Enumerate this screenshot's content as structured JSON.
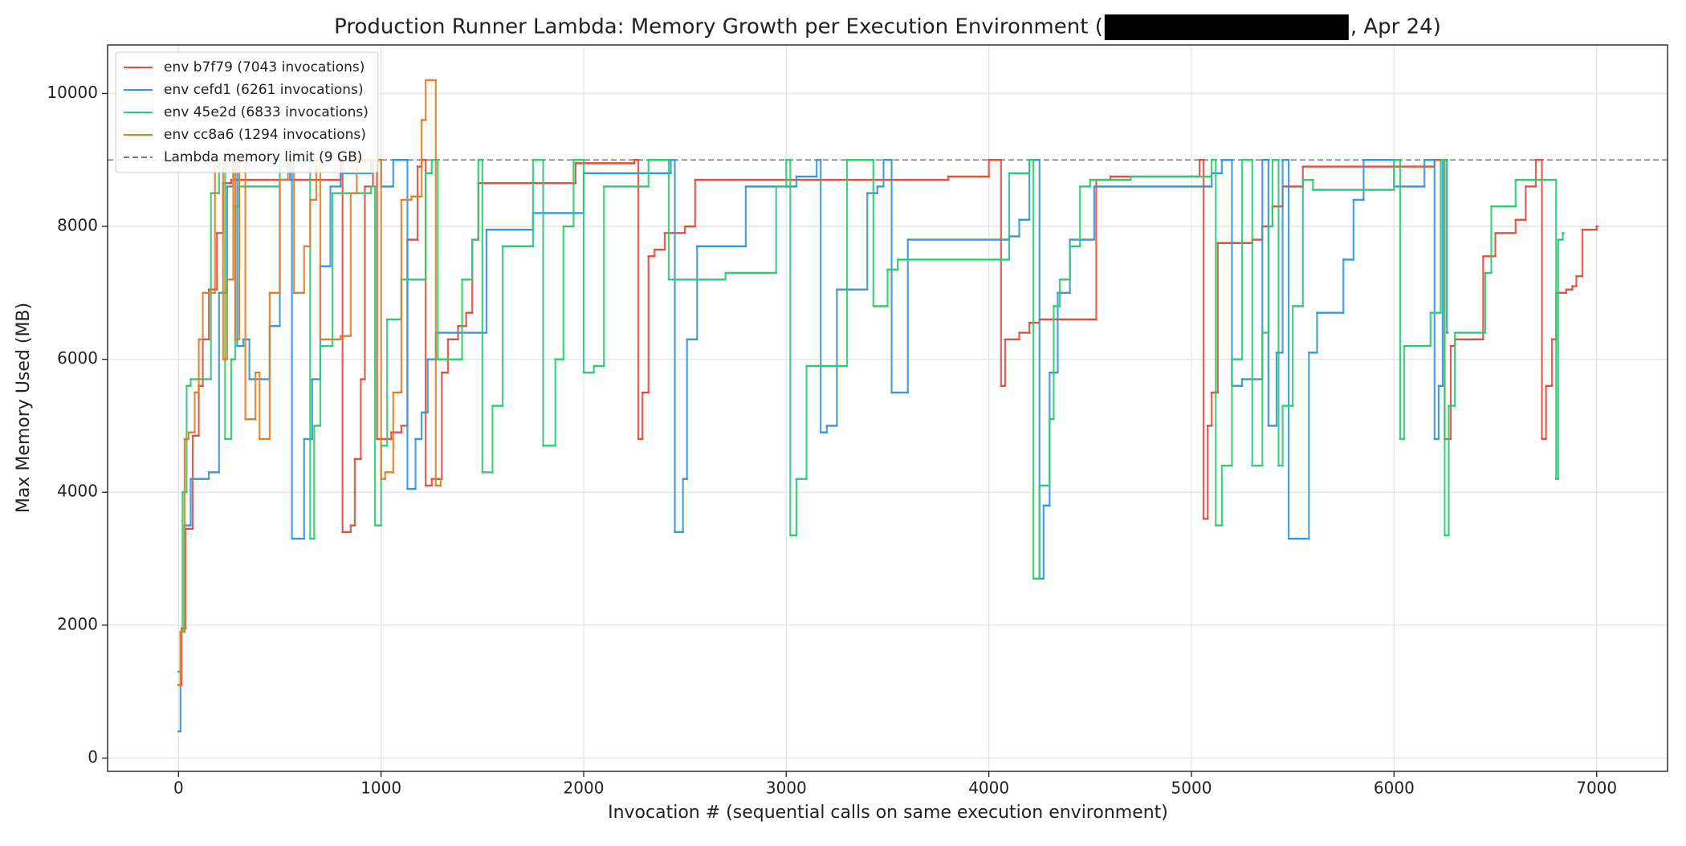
{
  "chart_data": {
    "type": "step",
    "title_before_redaction": "Production Runner Lambda: Memory Growth per Execution Environment (",
    "title_after_redaction": ", Apr 24)",
    "x_label": "Invocation # (sequential calls on same execution environment)",
    "y_label": "Max Memory Used (MB)",
    "xlim": [
      -350,
      7350
    ],
    "ylim": [
      -200,
      10730
    ],
    "xticks": [
      0,
      1000,
      2000,
      3000,
      4000,
      5000,
      6000,
      7000
    ],
    "yticks": [
      0,
      2000,
      4000,
      6000,
      8000,
      10000
    ],
    "grid": true,
    "legend": "upper left",
    "series": [
      {
        "name": "env b7f79 (7043 invocations)",
        "color": "#e74c3c",
        "x": [
          0,
          15,
          35,
          70,
          100,
          120,
          150,
          190,
          220,
          260,
          790,
          800,
          810,
          850,
          870,
          900,
          920,
          960,
          980,
          1050,
          1100,
          1130,
          1180,
          1200,
          1220,
          1250,
          1300,
          1330,
          1380,
          1420,
          1450,
          1480,
          1950,
          1960,
          2250,
          2270,
          2290,
          2320,
          2350,
          2400,
          2500,
          2550,
          3000,
          3800,
          4000,
          4060,
          4080,
          4150,
          4200,
          4250,
          4500,
          4530,
          4600,
          5000,
          5040,
          5060,
          5080,
          5100,
          5130,
          5300,
          5350,
          5400,
          5450,
          5550,
          6100,
          6200,
          6250,
          6280,
          6300,
          6400,
          6440,
          6500,
          6600,
          6650,
          6700,
          6730,
          6750,
          6780,
          6800,
          6850,
          6880,
          6900,
          6930,
          7000
        ],
        "values": [
          1100,
          1950,
          3450,
          4850,
          5600,
          6300,
          7050,
          7900,
          8650,
          8700,
          8700,
          9000,
          3400,
          3500,
          4500,
          5700,
          8600,
          9000,
          4800,
          4900,
          5000,
          7800,
          8900,
          9000,
          4100,
          4200,
          5800,
          6300,
          6500,
          6700,
          7800,
          8650,
          8650,
          8950,
          9000,
          4800,
          5500,
          7550,
          7650,
          7900,
          8000,
          8700,
          8700,
          8750,
          9000,
          5600,
          6300,
          6400,
          6550,
          6600,
          6600,
          8700,
          8750,
          8750,
          9000,
          3600,
          5000,
          5500,
          7750,
          7800,
          8000,
          8300,
          8600,
          8900,
          8900,
          9000,
          4800,
          6200,
          6300,
          6300,
          7550,
          7900,
          8100,
          8600,
          9000,
          4800,
          5600,
          6300,
          7000,
          7050,
          7100,
          7250,
          7950,
          8000
        ]
      },
      {
        "name": "env cefd1 (6261 invocations)",
        "color": "#3498db",
        "x": [
          0,
          10,
          30,
          60,
          150,
          200,
          240,
          270,
          290,
          320,
          350,
          450,
          500,
          550,
          560,
          620,
          660,
          700,
          750,
          800,
          950,
          1000,
          1060,
          1130,
          1170,
          1200,
          1230,
          1270,
          1520,
          1750,
          2000,
          2430,
          2450,
          2490,
          2510,
          2560,
          2800,
          3050,
          3150,
          3170,
          3200,
          3250,
          3400,
          3450,
          3480,
          3520,
          3600,
          4100,
          4150,
          4200,
          4250,
          4270,
          4300,
          4340,
          4400,
          4520,
          5100,
          5150,
          5200,
          5250,
          5350,
          5380,
          5420,
          5450,
          5480,
          5580,
          5620,
          5750,
          5800,
          5850,
          6000,
          6150,
          6200,
          6220,
          6240,
          6261
        ],
        "values": [
          400,
          1900,
          3500,
          4200,
          4300,
          7000,
          8600,
          9000,
          6200,
          6300,
          5700,
          6500,
          8700,
          9000,
          3300,
          4800,
          5700,
          7400,
          8600,
          8800,
          9000,
          8600,
          9000,
          4050,
          4800,
          5200,
          6000,
          6400,
          7950,
          8200,
          8800,
          9000,
          3400,
          4200,
          6300,
          7700,
          8600,
          8750,
          9000,
          4900,
          5000,
          7050,
          8500,
          8600,
          9000,
          5500,
          7800,
          7850,
          8100,
          9000,
          2700,
          3800,
          5800,
          7000,
          7800,
          8600,
          8800,
          9000,
          5600,
          5700,
          9000,
          5000,
          6100,
          9000,
          3300,
          6100,
          6700,
          7500,
          8400,
          9000,
          8600,
          9000,
          4800,
          5600,
          9000,
          6400
        ]
      },
      {
        "name": "env 45e2d (6833 invocations)",
        "color": "#2ecc71",
        "x": [
          0,
          10,
          20,
          40,
          60,
          160,
          200,
          230,
          260,
          280,
          300,
          500,
          650,
          670,
          700,
          760,
          950,
          970,
          1000,
          1030,
          1100,
          1220,
          1250,
          1280,
          1400,
          1450,
          1480,
          1500,
          1550,
          1600,
          1750,
          1800,
          1860,
          1900,
          1950,
          2000,
          2050,
          2100,
          2320,
          2420,
          2700,
          2950,
          3000,
          3020,
          3050,
          3100,
          3300,
          3430,
          3500,
          3550,
          4100,
          4200,
          4220,
          4250,
          4300,
          4320,
          4350,
          4400,
          4450,
          4500,
          4700,
          5100,
          5120,
          5150,
          5200,
          5250,
          5300,
          5350,
          5380,
          5400,
          5430,
          5450,
          5500,
          5550,
          5600,
          6000,
          6030,
          6050,
          6180,
          6230,
          6250,
          6270,
          6300,
          6450,
          6480,
          6600,
          6800,
          6810,
          6833
        ],
        "values": [
          1300,
          1900,
          4000,
          5600,
          5700,
          8500,
          9000,
          4800,
          6000,
          8300,
          8600,
          9000,
          3300,
          5000,
          6200,
          8500,
          8600,
          3500,
          4700,
          6600,
          7200,
          8800,
          9000,
          6000,
          7200,
          7800,
          9000,
          4300,
          5300,
          7700,
          9000,
          4700,
          6000,
          8000,
          9000,
          5800,
          5900,
          8600,
          9000,
          7200,
          7300,
          8600,
          9000,
          3350,
          4200,
          5900,
          9000,
          6800,
          7350,
          7500,
          8800,
          9000,
          2700,
          4100,
          5100,
          6800,
          7200,
          7700,
          8600,
          8700,
          8750,
          9000,
          3500,
          4400,
          6000,
          9000,
          4400,
          6400,
          8000,
          9000,
          4400,
          5300,
          6800,
          8700,
          8550,
          9000,
          4800,
          6200,
          6700,
          9000,
          3350,
          5300,
          6400,
          7300,
          8300,
          8700,
          4200,
          7800,
          7900
        ]
      },
      {
        "name": "env cc8a6 (1294 invocations)",
        "color": "#e67e22",
        "x": [
          0,
          10,
          30,
          50,
          80,
          100,
          120,
          180,
          200,
          220,
          240,
          270,
          280,
          300,
          330,
          380,
          400,
          450,
          500,
          540,
          570,
          620,
          650,
          680,
          700,
          800,
          850,
          880,
          1000,
          1020,
          1060,
          1100,
          1150,
          1200,
          1220,
          1270,
          1294
        ],
        "values": [
          1100,
          1900,
          4800,
          4900,
          5500,
          6300,
          7000,
          8900,
          9000,
          6000,
          7200,
          9000,
          6300,
          9000,
          5100,
          5800,
          4800,
          7000,
          8700,
          9000,
          7000,
          7700,
          8400,
          9000,
          6300,
          6350,
          8500,
          9000,
          4200,
          4300,
          5500,
          8400,
          8450,
          9600,
          10200,
          4100,
          4200
        ]
      }
    ],
    "hlines": [
      {
        "y": 9000,
        "label": "Lambda memory limit (9 GB)",
        "color": "#777777"
      }
    ]
  }
}
